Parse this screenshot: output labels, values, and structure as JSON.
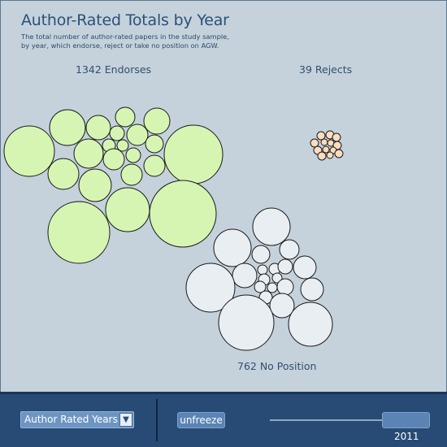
{
  "header": {
    "title": "Author-Rated Totals by Year",
    "subtitle_line1": "The total number of author-rated papers in the study sample,",
    "subtitle_line2": "by year, which endorse, reject or take no position on AGW."
  },
  "clusters": {
    "endorse": {
      "label": "1342 Endorses",
      "fill": "#d6f5b2"
    },
    "reject": {
      "label": "39 Rejects",
      "fill": "#fcdcc0"
    },
    "no_position": {
      "label": "762 No Position",
      "fill": "#e9eef3"
    }
  },
  "toolbar": {
    "dropdown_value": "Author Rated Years",
    "unfreeze_label": "unfreeze",
    "year_value": "2011"
  },
  "colors": {
    "background": "#c5d2dc",
    "toolbar": "#274b75",
    "title": "#2a5179",
    "circle_stroke": "#1a1a1a"
  }
}
